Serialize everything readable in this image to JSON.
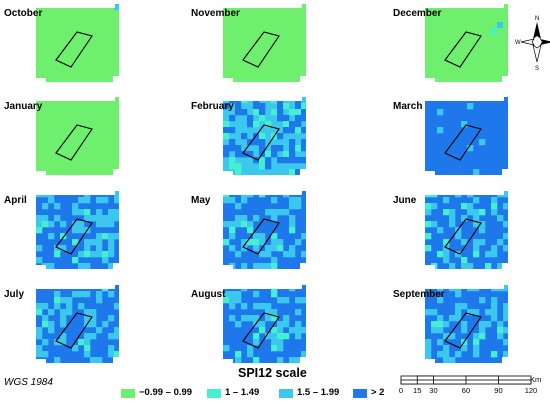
{
  "panels": [
    {
      "month": "October",
      "base": "c1",
      "patches": [
        {
          "r": 0,
          "c": 13,
          "cls": "c3"
        }
      ]
    },
    {
      "month": "November",
      "base": "c1",
      "patches": []
    },
    {
      "month": "December",
      "base": "c1",
      "patches": [
        {
          "r": 3,
          "c": 12,
          "cls": "c3"
        },
        {
          "r": 4,
          "c": 11,
          "cls": "c2"
        }
      ]
    },
    {
      "month": "January",
      "base": "c1",
      "patches": []
    },
    {
      "month": "February",
      "base": "c3",
      "seed": 7,
      "mix": [
        [
          "c4",
          0.33
        ],
        [
          "c2",
          0.12
        ]
      ]
    },
    {
      "month": "March",
      "base": "c4",
      "seed": 11,
      "mix": [
        [
          "c3",
          0.06
        ]
      ]
    },
    {
      "month": "April",
      "base": "c4",
      "seed": 21,
      "mix": [
        [
          "c3",
          0.3
        ],
        [
          "c2",
          0.06
        ]
      ]
    },
    {
      "month": "May",
      "base": "c4",
      "seed": 33,
      "mix": [
        [
          "c3",
          0.28
        ],
        [
          "c2",
          0.06
        ]
      ]
    },
    {
      "month": "June",
      "base": "c4",
      "seed": 45,
      "mix": [
        [
          "c3",
          0.28
        ],
        [
          "c2",
          0.07
        ]
      ]
    },
    {
      "month": "July",
      "base": "c4",
      "seed": 57,
      "mix": [
        [
          "c3",
          0.3
        ],
        [
          "c2",
          0.05
        ]
      ]
    },
    {
      "month": "August",
      "base": "c4",
      "seed": 69,
      "mix": [
        [
          "c3",
          0.27
        ],
        [
          "c2",
          0.06
        ]
      ]
    },
    {
      "month": "September",
      "base": "c4",
      "seed": 81,
      "mix": [
        [
          "c3",
          0.3
        ],
        [
          "c2",
          0.06
        ]
      ]
    }
  ],
  "classes": {
    "c1": "#6ef06e",
    "c2": "#45f0d0",
    "c3": "#3cc8ee",
    "c4": "#1e78ec"
  },
  "legend": {
    "title": "SPI12 scale",
    "items": [
      {
        "label": "−0.99 – 0.99",
        "cls": "c1"
      },
      {
        "label": "1 – 1.49",
        "cls": "c2"
      },
      {
        "label": "1.5 – 1.99",
        "cls": "c3"
      },
      {
        "label": "> 2",
        "cls": "c4"
      }
    ]
  },
  "crs": "WGS 1984",
  "scale_bar": {
    "ticks": [
      "0",
      "15",
      "30",
      "60",
      "90",
      "120"
    ],
    "unit": "Km"
  },
  "north_arrow": {
    "n": "N",
    "e": "E",
    "w": "W",
    "s": "S"
  }
}
